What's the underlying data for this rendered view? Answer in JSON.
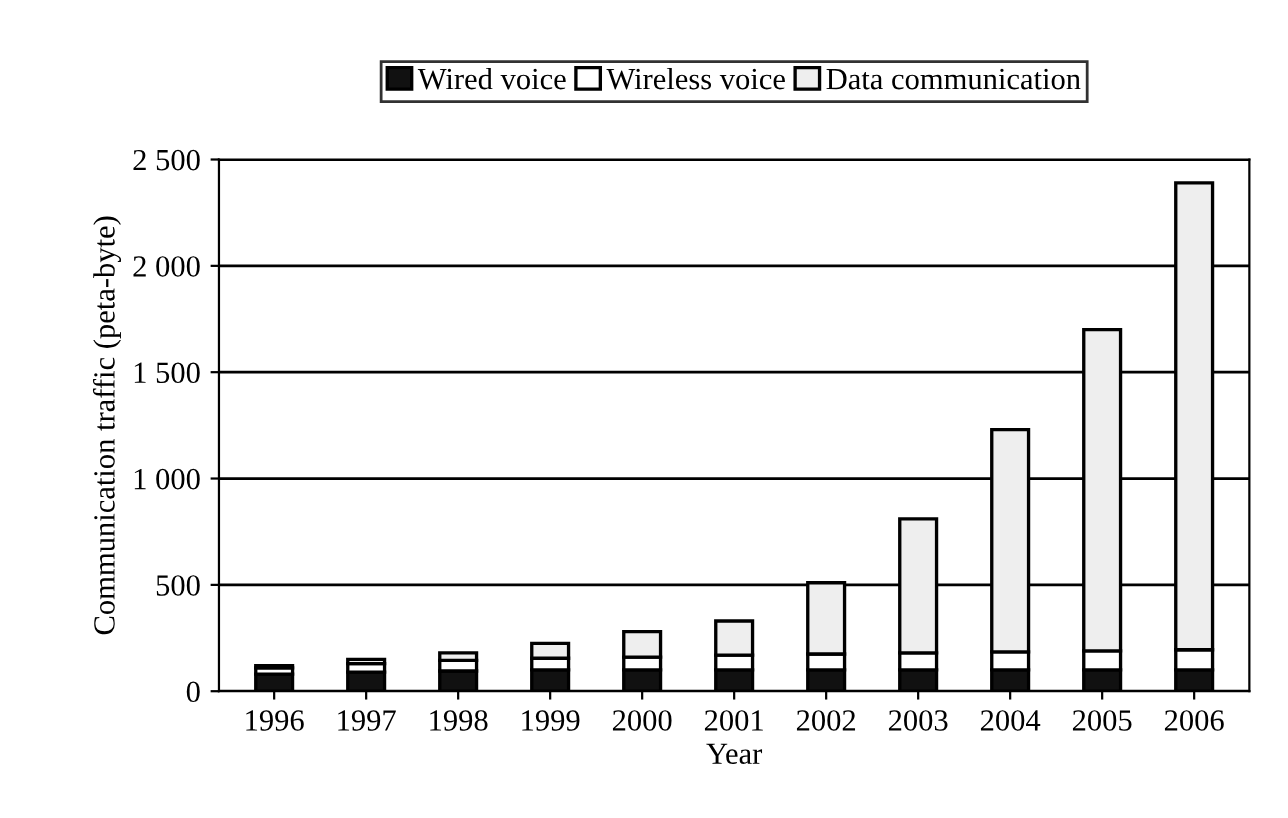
{
  "chart_data": {
    "type": "bar",
    "stacked": true,
    "xlabel": "Year",
    "ylabel": "Communication traffic (peta-byte)",
    "categories": [
      "1996",
      "1997",
      "1998",
      "1999",
      "2000",
      "2001",
      "2002",
      "2003",
      "2004",
      "2005",
      "2006"
    ],
    "series": [
      {
        "name": "Wired voice",
        "color": "#111111",
        "values": [
          80,
          90,
          95,
          100,
          100,
          100,
          100,
          100,
          100,
          100,
          100
        ]
      },
      {
        "name": "Wireless voice",
        "color": "#ffffff",
        "values": [
          30,
          40,
          50,
          55,
          60,
          70,
          75,
          80,
          85,
          90,
          95
        ]
      },
      {
        "name": "Data communication",
        "color": "#eeeeee",
        "values": [
          10,
          20,
          35,
          70,
          120,
          160,
          335,
          630,
          1045,
          1510,
          2195
        ]
      }
    ],
    "ylim": [
      0,
      2500
    ],
    "yticks": [
      0,
      500,
      {
        "value": 1000,
        "label": "1 000"
      },
      {
        "value": 1500,
        "label": "1 500"
      },
      {
        "value": 2000,
        "label": "2 000"
      },
      {
        "value": 2500,
        "label": "2 500"
      }
    ],
    "grid": "y",
    "legend": "top"
  }
}
